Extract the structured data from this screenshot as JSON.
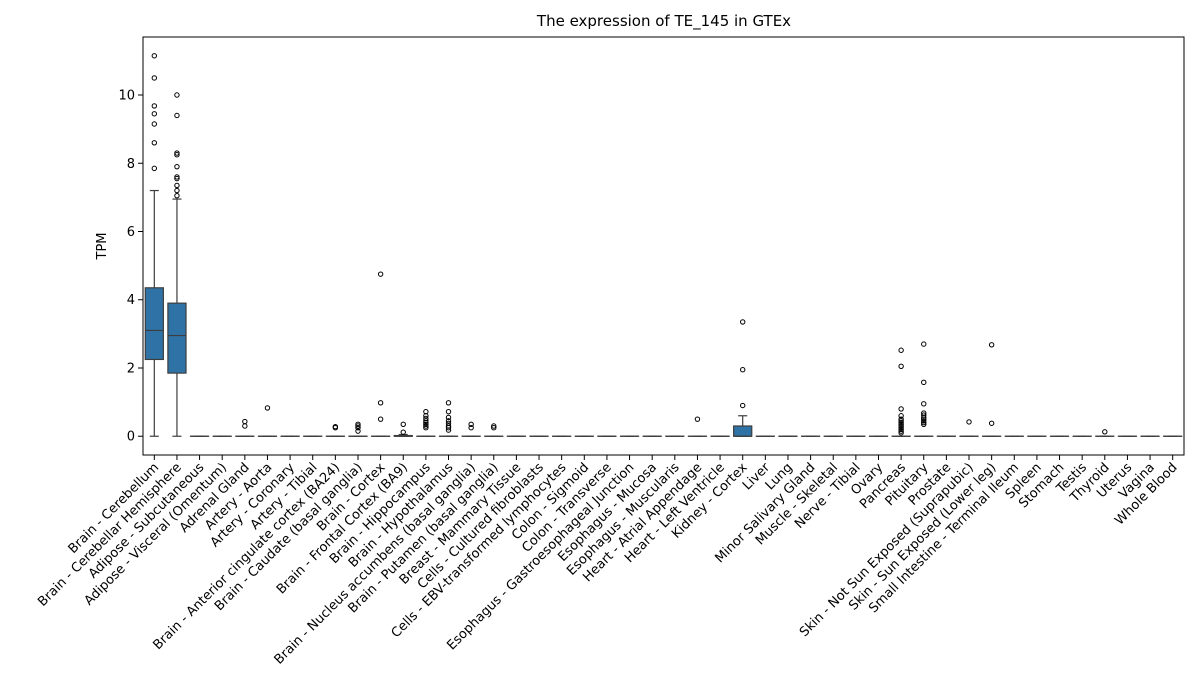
{
  "chart_data": {
    "type": "box",
    "title": "The expression of TE_145 in GTEx",
    "xlabel": "",
    "ylabel": "TPM",
    "ylim": [
      -0.55,
      11.7
    ],
    "yticks": [
      0,
      2,
      4,
      6,
      8,
      10
    ],
    "grid": false,
    "legend": "none",
    "colors": {
      "box": "#2f73a6",
      "line": "#3d3d3d",
      "frame": "#000000"
    },
    "categories": [
      "Brain - Cerebellum",
      "Brain - Cerebellar Hemisphere",
      "Adipose - Subcutaneous",
      "Adipose - Visceral (Omentum)",
      "Adrenal Gland",
      "Artery - Aorta",
      "Artery - Coronary",
      "Artery - Tibial",
      "Brain - Anterior cingulate cortex (BA24)",
      "Brain - Caudate (basal ganglia)",
      "Brain - Cortex",
      "Brain - Frontal Cortex (BA9)",
      "Brain - Hippocampus",
      "Brain - Hypothalamus",
      "Brain - Nucleus accumbens (basal ganglia)",
      "Brain - Putamen (basal ganglia)",
      "Breast - Mammary Tissue",
      "Cells - Cultured fibroblasts",
      "Cells - EBV-transformed lymphocytes",
      "Colon - Sigmoid",
      "Colon - Transverse",
      "Esophagus - Gastroesophageal Junction",
      "Esophagus - Mucosa",
      "Esophagus - Muscularis",
      "Heart - Atrial Appendage",
      "Heart - Left Ventricle",
      "Kidney - Cortex",
      "Liver",
      "Lung",
      "Minor Salivary Gland",
      "Muscle - Skeletal",
      "Nerve - Tibial",
      "Ovary",
      "Pancreas",
      "Pituitary",
      "Prostate",
      "Skin - Not Sun Exposed (Suprapubic)",
      "Skin - Sun Exposed (Lower leg)",
      "Small Intestine - Terminal Ileum",
      "Spleen",
      "Stomach",
      "Testis",
      "Thyroid",
      "Uterus",
      "Vagina",
      "Whole Blood"
    ],
    "boxes": [
      {
        "q1": 2.25,
        "median": 3.1,
        "q3": 4.35,
        "whislo": 0,
        "whishi": 7.2,
        "fliers": [
          11.15,
          10.5,
          9.68,
          9.45,
          9.15,
          8.6,
          7.85
        ]
      },
      {
        "q1": 1.85,
        "median": 2.95,
        "q3": 3.9,
        "whislo": 0,
        "whishi": 6.95,
        "fliers": [
          10.0,
          9.4,
          8.3,
          8.25,
          7.9,
          7.6,
          7.55,
          7.35,
          7.2,
          7.05
        ]
      },
      {
        "q1": 0,
        "median": 0,
        "q3": 0,
        "whislo": 0,
        "whishi": 0,
        "fliers": []
      },
      {
        "q1": 0,
        "median": 0,
        "q3": 0,
        "whislo": 0,
        "whishi": 0,
        "fliers": []
      },
      {
        "q1": 0,
        "median": 0,
        "q3": 0,
        "whislo": 0,
        "whishi": 0,
        "fliers": [
          0.43,
          0.3
        ]
      },
      {
        "q1": 0,
        "median": 0,
        "q3": 0,
        "whislo": 0,
        "whishi": 0,
        "fliers": [
          0.83
        ]
      },
      {
        "q1": 0,
        "median": 0,
        "q3": 0,
        "whislo": 0,
        "whishi": 0,
        "fliers": []
      },
      {
        "q1": 0,
        "median": 0,
        "q3": 0,
        "whislo": 0,
        "whishi": 0,
        "fliers": []
      },
      {
        "q1": 0,
        "median": 0,
        "q3": 0,
        "whislo": 0,
        "whishi": 0,
        "fliers": [
          0.28,
          0.25
        ]
      },
      {
        "q1": 0,
        "median": 0,
        "q3": 0,
        "whislo": 0,
        "whishi": 0,
        "fliers": [
          0.35,
          0.3,
          0.25,
          0.15
        ]
      },
      {
        "q1": 0,
        "median": 0,
        "q3": 0,
        "whislo": 0,
        "whishi": 0,
        "fliers": [
          4.75,
          0.98,
          0.5
        ]
      },
      {
        "q1": 0,
        "median": 0,
        "q3": 0.02,
        "whislo": 0,
        "whishi": 0.05,
        "fliers": [
          0.35,
          0.12
        ]
      },
      {
        "q1": 0,
        "median": 0,
        "q3": 0,
        "whislo": 0,
        "whishi": 0,
        "fliers": [
          0.72,
          0.6,
          0.52,
          0.45,
          0.4,
          0.35,
          0.3,
          0.25
        ]
      },
      {
        "q1": 0,
        "median": 0,
        "q3": 0,
        "whislo": 0,
        "whishi": 0,
        "fliers": [
          0.98,
          0.72,
          0.55,
          0.45,
          0.38,
          0.3,
          0.25,
          0.18
        ]
      },
      {
        "q1": 0,
        "median": 0,
        "q3": 0,
        "whislo": 0,
        "whishi": 0,
        "fliers": [
          0.35,
          0.25
        ]
      },
      {
        "q1": 0,
        "median": 0,
        "q3": 0,
        "whislo": 0,
        "whishi": 0,
        "fliers": [
          0.3,
          0.25
        ]
      },
      {
        "q1": 0,
        "median": 0,
        "q3": 0,
        "whislo": 0,
        "whishi": 0,
        "fliers": []
      },
      {
        "q1": 0,
        "median": 0,
        "q3": 0,
        "whislo": 0,
        "whishi": 0,
        "fliers": []
      },
      {
        "q1": 0,
        "median": 0,
        "q3": 0,
        "whislo": 0,
        "whishi": 0,
        "fliers": []
      },
      {
        "q1": 0,
        "median": 0,
        "q3": 0,
        "whislo": 0,
        "whishi": 0,
        "fliers": []
      },
      {
        "q1": 0,
        "median": 0,
        "q3": 0,
        "whislo": 0,
        "whishi": 0,
        "fliers": []
      },
      {
        "q1": 0,
        "median": 0,
        "q3": 0,
        "whislo": 0,
        "whishi": 0,
        "fliers": []
      },
      {
        "q1": 0,
        "median": 0,
        "q3": 0,
        "whislo": 0,
        "whishi": 0,
        "fliers": []
      },
      {
        "q1": 0,
        "median": 0,
        "q3": 0,
        "whislo": 0,
        "whishi": 0,
        "fliers": []
      },
      {
        "q1": 0,
        "median": 0,
        "q3": 0,
        "whislo": 0,
        "whishi": 0,
        "fliers": [
          0.5
        ]
      },
      {
        "q1": 0,
        "median": 0,
        "q3": 0,
        "whislo": 0,
        "whishi": 0,
        "fliers": []
      },
      {
        "q1": 0,
        "median": 0,
        "q3": 0.3,
        "whislo": 0,
        "whishi": 0.6,
        "fliers": [
          3.35,
          1.95,
          0.9
        ]
      },
      {
        "q1": 0,
        "median": 0,
        "q3": 0,
        "whislo": 0,
        "whishi": 0,
        "fliers": []
      },
      {
        "q1": 0,
        "median": 0,
        "q3": 0,
        "whislo": 0,
        "whishi": 0,
        "fliers": []
      },
      {
        "q1": 0,
        "median": 0,
        "q3": 0,
        "whislo": 0,
        "whishi": 0,
        "fliers": []
      },
      {
        "q1": 0,
        "median": 0,
        "q3": 0,
        "whislo": 0,
        "whishi": 0,
        "fliers": []
      },
      {
        "q1": 0,
        "median": 0,
        "q3": 0,
        "whislo": 0,
        "whishi": 0,
        "fliers": []
      },
      {
        "q1": 0,
        "median": 0,
        "q3": 0,
        "whislo": 0,
        "whishi": 0,
        "fliers": []
      },
      {
        "q1": 0,
        "median": 0,
        "q3": 0,
        "whislo": 0,
        "whishi": 0,
        "fliers": [
          2.52,
          2.05,
          0.8,
          0.6,
          0.5,
          0.45,
          0.4,
          0.35,
          0.3,
          0.25,
          0.2,
          0.15,
          0.1
        ]
      },
      {
        "q1": 0,
        "median": 0,
        "q3": 0,
        "whislo": 0,
        "whishi": 0,
        "fliers": [
          2.7,
          1.58,
          0.95,
          0.68,
          0.62,
          0.55,
          0.5,
          0.45,
          0.4,
          0.35
        ]
      },
      {
        "q1": 0,
        "median": 0,
        "q3": 0,
        "whislo": 0,
        "whishi": 0,
        "fliers": []
      },
      {
        "q1": 0,
        "median": 0,
        "q3": 0,
        "whislo": 0,
        "whishi": 0,
        "fliers": [
          0.42
        ]
      },
      {
        "q1": 0,
        "median": 0,
        "q3": 0,
        "whislo": 0,
        "whishi": 0,
        "fliers": [
          2.68,
          0.38
        ]
      },
      {
        "q1": 0,
        "median": 0,
        "q3": 0,
        "whislo": 0,
        "whishi": 0,
        "fliers": []
      },
      {
        "q1": 0,
        "median": 0,
        "q3": 0,
        "whislo": 0,
        "whishi": 0,
        "fliers": []
      },
      {
        "q1": 0,
        "median": 0,
        "q3": 0,
        "whislo": 0,
        "whishi": 0,
        "fliers": []
      },
      {
        "q1": 0,
        "median": 0,
        "q3": 0,
        "whislo": 0,
        "whishi": 0,
        "fliers": []
      },
      {
        "q1": 0,
        "median": 0,
        "q3": 0,
        "whislo": 0,
        "whishi": 0,
        "fliers": [
          0.13
        ]
      },
      {
        "q1": 0,
        "median": 0,
        "q3": 0,
        "whislo": 0,
        "whishi": 0,
        "fliers": []
      },
      {
        "q1": 0,
        "median": 0,
        "q3": 0,
        "whislo": 0,
        "whishi": 0,
        "fliers": []
      },
      {
        "q1": 0,
        "median": 0,
        "q3": 0,
        "whislo": 0,
        "whishi": 0,
        "fliers": []
      }
    ]
  }
}
